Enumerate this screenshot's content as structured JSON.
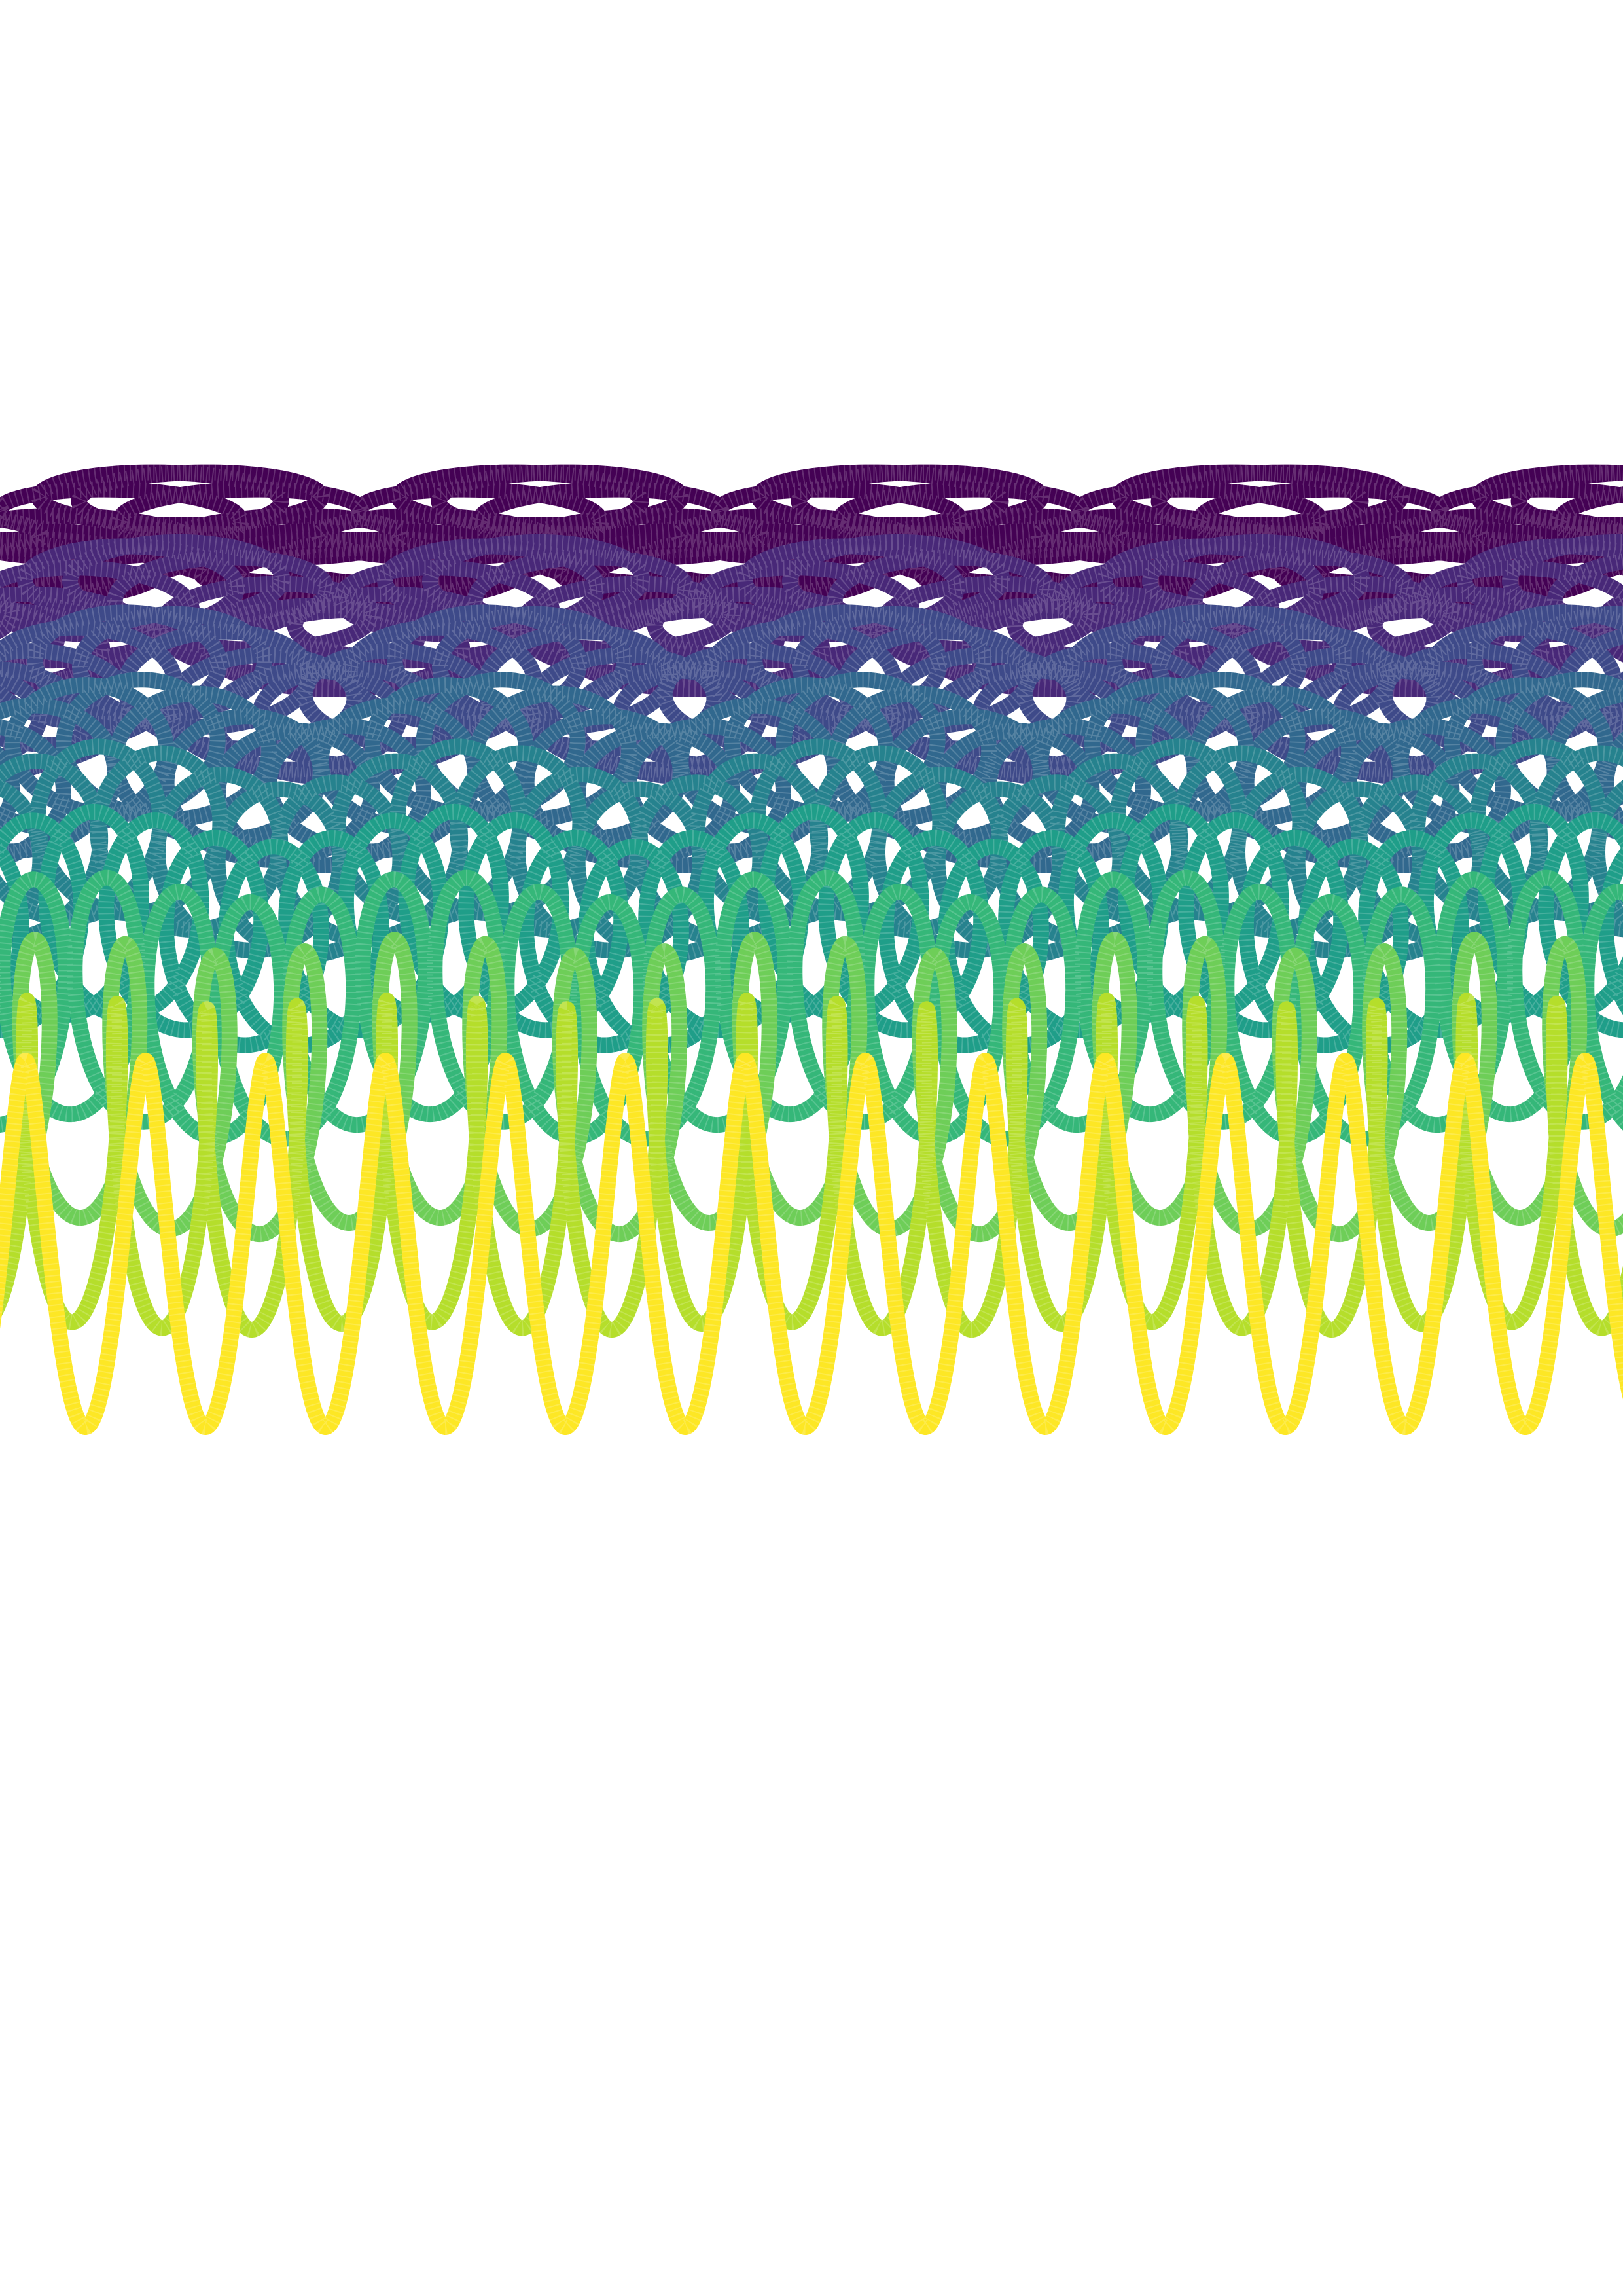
{
  "artwork": {
    "background_color": "#ffffff",
    "palette": [
      "#440154",
      "#482878",
      "#3e4a89",
      "#31688e",
      "#26828e",
      "#1f9e89",
      "#35b779",
      "#6ece58",
      "#b5de2b",
      "#fde725"
    ],
    "curve_count": 10,
    "style": "overlapping looping sine curves (prolate trochoids) with dashed texture, viridis gradient"
  }
}
